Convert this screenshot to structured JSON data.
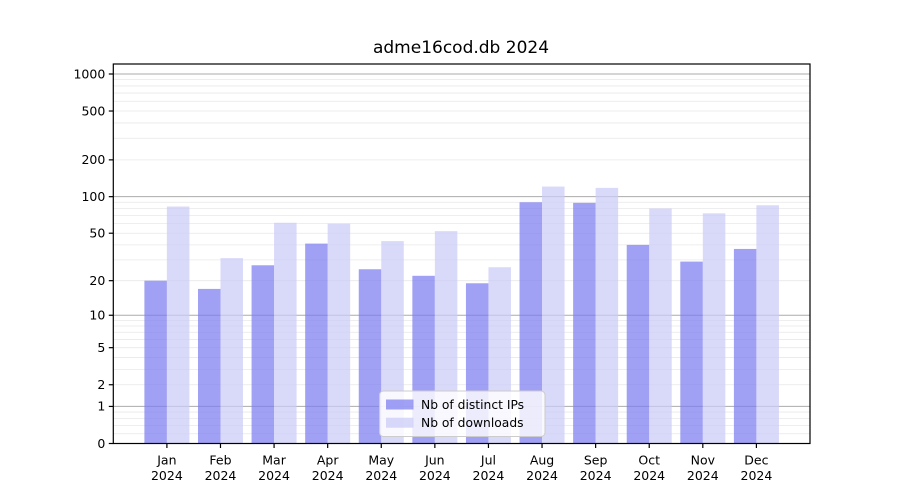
{
  "figure": {
    "background": "#ffffff"
  },
  "chart_data": {
    "type": "bar",
    "title": "adme16cod.db 2024",
    "categories": [
      "Jan 2024",
      "Feb 2024",
      "Mar 2024",
      "Apr 2024",
      "May 2024",
      "Jun 2024",
      "Jul 2024",
      "Aug 2024",
      "Sep 2024",
      "Oct 2024",
      "Nov 2024",
      "Dec 2024"
    ],
    "series": [
      {
        "name": "Nb of distinct IPs",
        "color": "rgba(124,124,240,0.72)",
        "values": [
          20,
          17,
          27,
          41,
          25,
          22,
          19,
          90,
          89,
          40,
          29,
          37
        ]
      },
      {
        "name": "Nb of downloads",
        "color": "rgba(203,203,246,0.72)",
        "values": [
          83,
          31,
          61,
          60,
          43,
          52,
          26,
          121,
          118,
          80,
          73,
          85
        ]
      }
    ],
    "xlabel": "",
    "ylabel": "",
    "yscale": "log1p",
    "yticks": [
      0,
      1,
      2,
      5,
      10,
      20,
      50,
      100,
      200,
      500,
      1000
    ],
    "ylim": [
      0,
      1200
    ],
    "grid": true,
    "legend_position": "lower-center-inside",
    "colors": {
      "major_grid": "#ababab",
      "minor_grid": "#e8e8e8",
      "axis": "#000000",
      "text": "#000000",
      "legend_bg": "rgba(255,255,255,0.8)",
      "legend_border": "#cccccc"
    }
  }
}
